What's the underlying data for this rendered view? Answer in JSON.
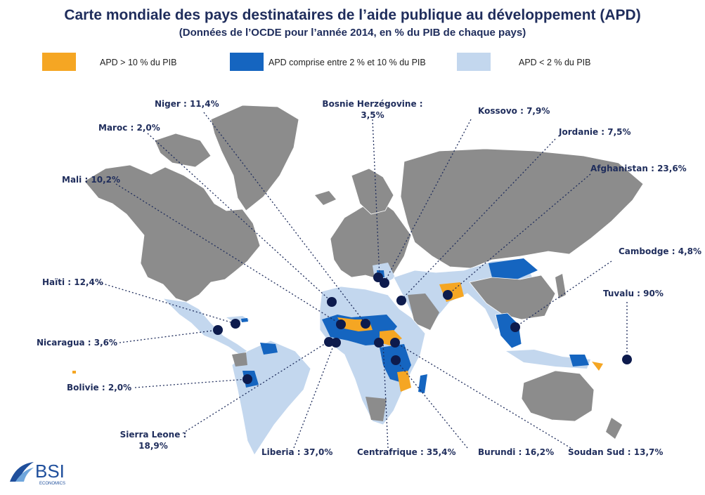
{
  "title": "Carte mondiale des pays destinataires de l’aide publique au développement (APD)",
  "subtitle": "(Données de l’OCDE pour l’année 2014, en % du PIB de chaque pays)",
  "legend": [
    {
      "label": "APD > 10 % du PIB",
      "color": "#f5a623"
    },
    {
      "label": "APD comprise entre 2 % et 10 % du PIB",
      "color": "#1565c0"
    },
    {
      "label": "APD < 2 % du PIB",
      "color": "#c3d7ee"
    }
  ],
  "colors": {
    "non_recipient": "#8c8c8c",
    "low": "#c3d7ee",
    "mid": "#1565c0",
    "high": "#f5a623",
    "marker": "#0d1b4d",
    "leader": "#1f2d5c"
  },
  "labels": {
    "niger": "Niger : 11,4%",
    "bosnie": "Bosnie Herzégovine :",
    "bosnie_val": "3,5%",
    "kossovo": "Kossovo : 7,9%",
    "maroc": "Maroc : 2,0%",
    "jordanie": "Jordanie : 7,5%",
    "afghanistan": "Afghanistan : 23,6%",
    "mali": "Mali : 10,2%",
    "cambodge": "Cambodge : 4,8%",
    "haiti": "Haïti : 12,4%",
    "tuvalu": "Tuvalu : 90%",
    "nicaragua": "Nicaragua : 3,6%",
    "bolivie": "Bolivie : 2,0%",
    "sierra": "Sierra Leone :",
    "sierra_val": "18,9%",
    "liberia": "Liberia : 37,0%",
    "centrafrique": "Centrafrique : 35,4%",
    "burundi": "Burundi : 16,2%",
    "soudan": "Soudan Sud : 13,7%"
  },
  "logo": {
    "brand": "BSI",
    "sub": "ECONOMICS"
  }
}
